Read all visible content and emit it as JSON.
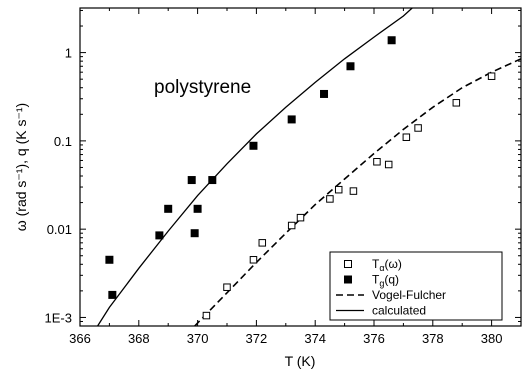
{
  "chart_data": {
    "type": "scatter",
    "annotation": "polystyrene",
    "xlabel": "T (K)",
    "ylabel": "ω (rad s⁻¹), q (K s⁻¹)",
    "xlim": [
      366,
      381
    ],
    "ylim": [
      0.0008,
      3.2
    ],
    "yscale": "log",
    "x_ticks": [
      366,
      368,
      370,
      372,
      374,
      376,
      378,
      380
    ],
    "y_ticks": [
      {
        "value": 0.001,
        "label": "1E-3"
      },
      {
        "value": 0.01,
        "label": "0.01"
      },
      {
        "value": 0.1,
        "label": "0.1"
      },
      {
        "value": 1,
        "label": "1"
      }
    ],
    "legend_position": "lower-right",
    "series": [
      {
        "name": "Tα(ω)",
        "name_main": "T",
        "name_sub": "α",
        "name_tail": "(ω)",
        "marker": "open-square",
        "points": [
          [
            370.3,
            0.00105
          ],
          [
            371.0,
            0.0022
          ],
          [
            371.9,
            0.0045
          ],
          [
            372.2,
            0.007
          ],
          [
            373.2,
            0.011
          ],
          [
            373.5,
            0.0135
          ],
          [
            374.5,
            0.022
          ],
          [
            374.8,
            0.028
          ],
          [
            375.3,
            0.027
          ],
          [
            376.1,
            0.058
          ],
          [
            376.5,
            0.054
          ],
          [
            377.1,
            0.11
          ],
          [
            377.5,
            0.14
          ],
          [
            378.8,
            0.27
          ],
          [
            380.0,
            0.54
          ]
        ]
      },
      {
        "name": "Tg(q)",
        "name_main": "T",
        "name_sub": "g",
        "name_tail": "(q)",
        "marker": "filled-square",
        "points": [
          [
            367.0,
            0.0045
          ],
          [
            367.1,
            0.0018
          ],
          [
            368.7,
            0.0085
          ],
          [
            369.0,
            0.017
          ],
          [
            369.8,
            0.036
          ],
          [
            369.9,
            0.009
          ],
          [
            370.0,
            0.017
          ],
          [
            370.5,
            0.036
          ],
          [
            371.9,
            0.088
          ],
          [
            373.2,
            0.175
          ],
          [
            374.3,
            0.34
          ],
          [
            375.2,
            0.7
          ],
          [
            376.6,
            1.38
          ]
        ]
      },
      {
        "name": "Vogel-Fulcher",
        "style": "dashed",
        "points": [
          [
            369.9,
            0.0008
          ],
          [
            371.0,
            0.0019
          ],
          [
            372.0,
            0.0042
          ],
          [
            373.0,
            0.009
          ],
          [
            374.0,
            0.019
          ],
          [
            375.0,
            0.037
          ],
          [
            376.0,
            0.072
          ],
          [
            377.0,
            0.135
          ],
          [
            378.0,
            0.24
          ],
          [
            379.0,
            0.4
          ],
          [
            380.0,
            0.6
          ],
          [
            381.0,
            0.85
          ]
        ]
      },
      {
        "name": "calculated",
        "style": "solid",
        "points": [
          [
            366.6,
            0.0008
          ],
          [
            367.0,
            0.0013
          ],
          [
            368.0,
            0.0036
          ],
          [
            369.0,
            0.0095
          ],
          [
            370.0,
            0.024
          ],
          [
            371.0,
            0.055
          ],
          [
            372.0,
            0.12
          ],
          [
            373.0,
            0.24
          ],
          [
            374.0,
            0.46
          ],
          [
            375.0,
            0.85
          ],
          [
            376.0,
            1.5
          ],
          [
            377.0,
            2.6
          ],
          [
            377.3,
            3.2
          ]
        ]
      }
    ]
  }
}
